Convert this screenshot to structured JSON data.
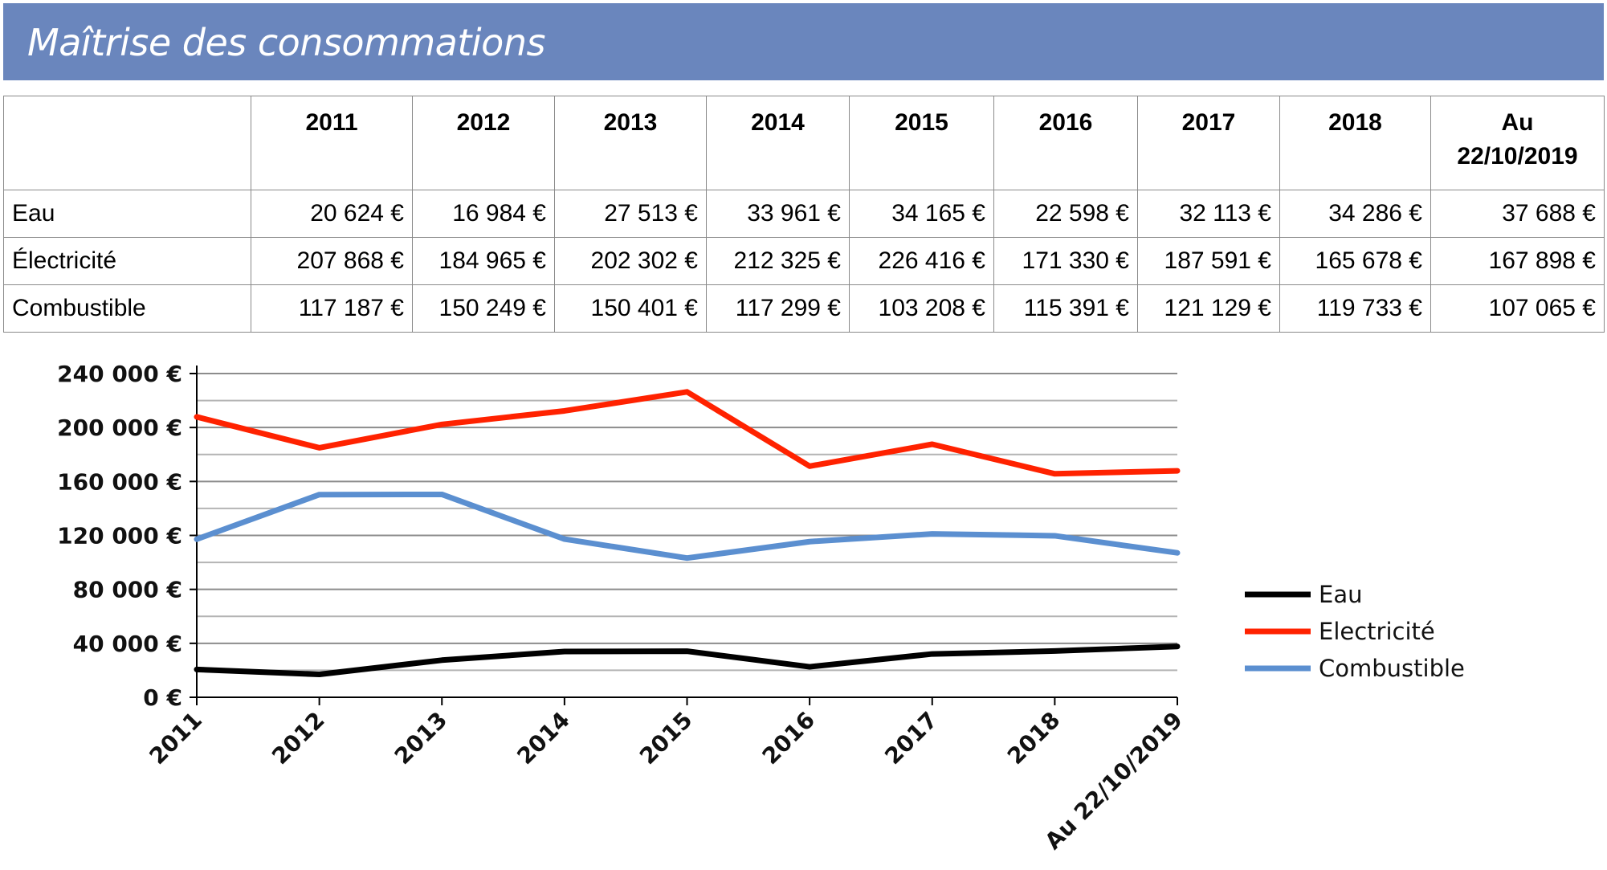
{
  "header": {
    "title": "Maîtrise des consommations"
  },
  "table": {
    "corner": "",
    "columns": [
      "2011",
      "2012",
      "2013",
      "2014",
      "2015",
      "2016",
      "2017",
      "2018"
    ],
    "last_column": {
      "line1": "Au",
      "line2": "22/10/2019"
    },
    "rows": [
      {
        "label": "Eau",
        "cells": [
          "20 624 €",
          "16 984 €",
          "27 513 €",
          "33 961 €",
          "34 165 €",
          "22 598 €",
          "32 113 €",
          "34 286 €",
          "37 688 €"
        ]
      },
      {
        "label": "Électricité",
        "cells": [
          "207 868 €",
          "184 965 €",
          "202 302 €",
          "212 325 €",
          "226 416 €",
          "171 330 €",
          "187 591 €",
          "165 678 €",
          "167 898 €"
        ]
      },
      {
        "label": "Combustible",
        "cells": [
          "117 187 €",
          "150 249 €",
          "150 401 €",
          "117 299 €",
          "103 208 €",
          "115 391 €",
          "121 129 €",
          "119 733 €",
          "107 065 €"
        ]
      }
    ]
  },
  "chart_data": {
    "type": "line",
    "title": "",
    "xlabel": "",
    "ylabel": "",
    "categories": [
      "2011",
      "2012",
      "2013",
      "2014",
      "2015",
      "2016",
      "2017",
      "2018",
      "Au 22/10/2019"
    ],
    "ylim": [
      0,
      240000
    ],
    "ytick_values": [
      0,
      40000,
      80000,
      120000,
      160000,
      200000,
      240000
    ],
    "ytick_labels": [
      "0 €",
      "40 000 €",
      "80 000 €",
      "120 000 €",
      "160 000 €",
      "200 000 €",
      "240 000 €"
    ],
    "grid": true,
    "legend_position": "right",
    "series": [
      {
        "name": "Eau",
        "color": "#000000",
        "values": [
          20624,
          16984,
          27513,
          33961,
          34165,
          22598,
          32113,
          34286,
          37688
        ]
      },
      {
        "name": "Electricité",
        "color": "#ff2200",
        "values": [
          207868,
          184965,
          202302,
          212325,
          226416,
          171330,
          187591,
          165678,
          167898
        ]
      },
      {
        "name": "Combustible",
        "color": "#5b8fd0",
        "values": [
          117187,
          150249,
          150401,
          117299,
          103208,
          115391,
          121129,
          119733,
          107065
        ]
      }
    ]
  }
}
